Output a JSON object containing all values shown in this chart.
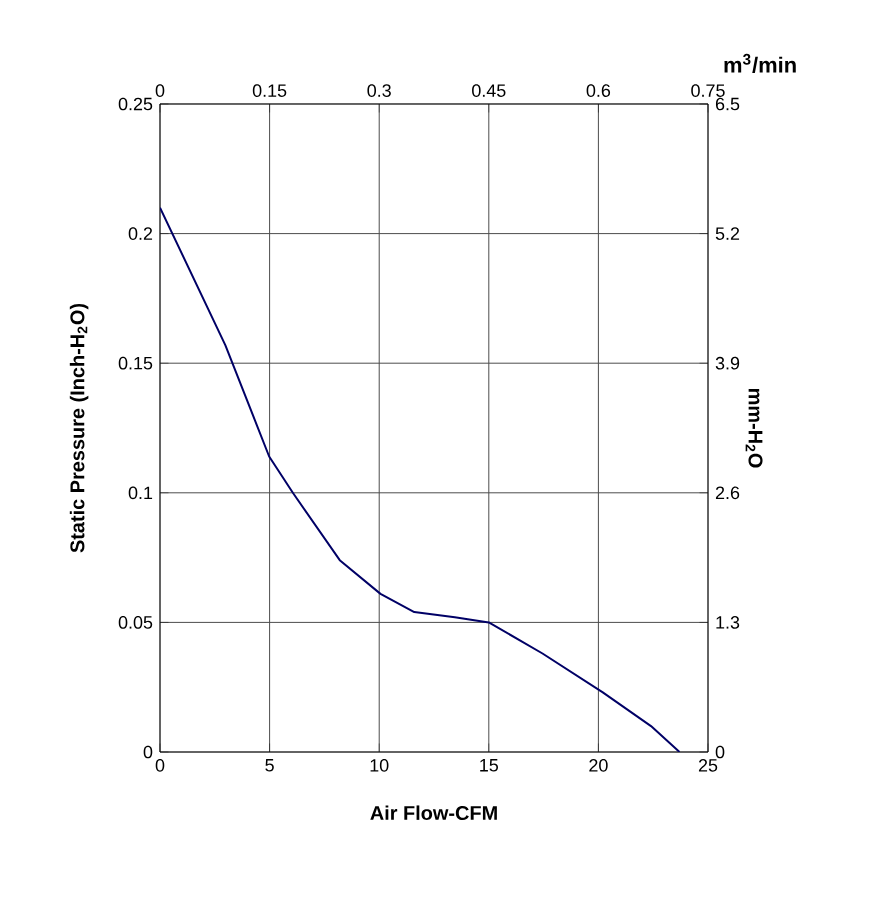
{
  "chart_data": {
    "type": "line",
    "xlabel": "Air Flow-CFM",
    "ylabel": "Static Pressure (Inch-H$_{2}$O)",
    "y2label": "mm-H$_{2}$O",
    "x2label": "m$^{3}$/min",
    "x": [
      0,
      2.98,
      4.98,
      6.06,
      8.2,
      10.06,
      11.6,
      13.45,
      15.0,
      17.45,
      20.2,
      22.4,
      23.7
    ],
    "series": [
      {
        "color": "#000066",
        "values": [
          0.21,
          0.157,
          0.114,
          0.1,
          0.074,
          0.061,
          0.054,
          0.052,
          0.05,
          0.038,
          0.023,
          0.01,
          0
        ]
      }
    ],
    "xlim": [
      0,
      25
    ],
    "xticks": [
      0,
      5,
      10,
      15,
      20,
      25
    ],
    "ylim": [
      0,
      0.25
    ],
    "yticks": [
      0,
      0.05,
      0.1,
      0.15,
      0.2,
      0.25
    ],
    "y2lim": [
      0,
      6.5
    ],
    "y2ticks": [
      0,
      1.3,
      2.6,
      3.9,
      5.2,
      6.5
    ],
    "x2lim": [
      0,
      0.75
    ],
    "x2ticks": [
      0,
      0.15,
      0.3,
      0.45,
      0.6,
      0.75
    ],
    "grid": true
  }
}
